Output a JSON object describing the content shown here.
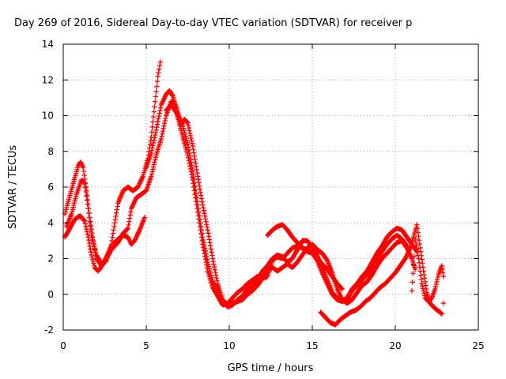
{
  "chart_data": {
    "type": "scatter",
    "title": "Day 269 of 2016, Sidereal Day-to-day VTEC variation (SDTVAR) for receiver p",
    "xlabel": "GPS time / hours",
    "ylabel": "SDTVAR / TECUs",
    "xlim": [
      0,
      25
    ],
    "ylim": [
      -2,
      14
    ],
    "xticks": [
      0,
      5,
      10,
      15,
      20,
      25
    ],
    "yticks": [
      -2,
      0,
      2,
      4,
      6,
      8,
      10,
      12,
      14
    ],
    "grid": true,
    "marker": "plus",
    "color": "#ff0000",
    "series": [
      {
        "points": [
          [
            0.1,
            4.5
          ],
          [
            0.3,
            5.2
          ],
          [
            0.6,
            6.2
          ],
          [
            0.9,
            7.2
          ],
          [
            1.05,
            7.4
          ],
          [
            1.2,
            7.1
          ],
          [
            1.4,
            5.8
          ],
          [
            1.6,
            4.3
          ],
          [
            1.8,
            3.0
          ],
          [
            2.0,
            2.0
          ],
          [
            2.3,
            1.6
          ],
          [
            2.6,
            1.9
          ],
          [
            2.9,
            2.8
          ],
          [
            3.1,
            4.0
          ],
          [
            3.3,
            5.1
          ],
          [
            3.6,
            5.8
          ],
          [
            3.9,
            6.0
          ],
          [
            4.2,
            5.8
          ],
          [
            4.5,
            6.0
          ],
          [
            4.8,
            6.6
          ],
          [
            5.1,
            7.6
          ],
          [
            5.3,
            8.8
          ],
          [
            5.5,
            10.5
          ],
          [
            5.7,
            12.2
          ],
          [
            5.85,
            13.0
          ]
        ]
      },
      {
        "points": [
          [
            0.1,
            3.2
          ],
          [
            0.4,
            3.7
          ],
          [
            0.7,
            4.2
          ],
          [
            1.0,
            4.4
          ],
          [
            1.3,
            4.1
          ],
          [
            1.5,
            3.2
          ],
          [
            1.7,
            2.2
          ],
          [
            1.9,
            1.5
          ],
          [
            2.1,
            1.3
          ],
          [
            2.4,
            1.7
          ],
          [
            2.7,
            2.3
          ],
          [
            3.0,
            2.8
          ],
          [
            3.3,
            3.1
          ],
          [
            3.6,
            3.3
          ],
          [
            3.9,
            3.2
          ],
          [
            4.1,
            2.8
          ],
          [
            4.3,
            3.0
          ],
          [
            4.6,
            3.6
          ],
          [
            4.9,
            4.3
          ]
        ]
      },
      {
        "points": [
          [
            0.2,
            3.8
          ],
          [
            0.5,
            4.5
          ],
          [
            0.8,
            5.6
          ],
          [
            1.1,
            6.4
          ],
          [
            1.3,
            6.2
          ],
          [
            1.5,
            4.8
          ],
          [
            1.7,
            3.3
          ],
          [
            2.0,
            2.2
          ],
          [
            2.3,
            1.7
          ],
          [
            2.6,
            2.0
          ],
          [
            2.9,
            2.5
          ],
          [
            3.3,
            2.9
          ],
          [
            3.6,
            3.4
          ],
          [
            3.9,
            3.7
          ],
          [
            4.1,
            4.8
          ],
          [
            4.4,
            5.4
          ],
          [
            4.7,
            5.6
          ],
          [
            5.0,
            5.8
          ],
          [
            5.3,
            6.6
          ],
          [
            5.6,
            7.8
          ],
          [
            5.9,
            8.7
          ],
          [
            6.2,
            10.0
          ],
          [
            6.5,
            10.8
          ],
          [
            6.7,
            10.7
          ],
          [
            6.9,
            9.9
          ],
          [
            7.2,
            8.8
          ],
          [
            7.5,
            7.8
          ],
          [
            7.8,
            6.4
          ],
          [
            8.1,
            4.6
          ],
          [
            8.4,
            2.8
          ],
          [
            8.7,
            1.3
          ],
          [
            9.0,
            0.4
          ],
          [
            9.3,
            -0.1
          ],
          [
            9.6,
            -0.6
          ],
          [
            9.9,
            -0.5
          ],
          [
            10.2,
            -0.2
          ],
          [
            10.5,
            0.1
          ],
          [
            10.8,
            0.3
          ],
          [
            11.1,
            0.6
          ],
          [
            11.4,
            0.8
          ],
          [
            11.7,
            1.0
          ],
          [
            12.0,
            0.9
          ],
          [
            12.3,
            1.3
          ],
          [
            12.6,
            1.5
          ],
          [
            12.9,
            1.3
          ],
          [
            13.2,
            1.5
          ],
          [
            13.5,
            1.7
          ],
          [
            13.8,
            1.5
          ],
          [
            14.1,
            1.8
          ],
          [
            14.4,
            2.2
          ],
          [
            14.7,
            2.6
          ],
          [
            15.0,
            2.8
          ],
          [
            15.3,
            2.5
          ],
          [
            15.6,
            2.3
          ],
          [
            15.9,
            1.9
          ],
          [
            16.2,
            1.2
          ],
          [
            16.5,
            0.3
          ],
          [
            16.8,
            -0.3
          ],
          [
            17.1,
            -0.5
          ],
          [
            17.4,
            -0.3
          ],
          [
            17.7,
            0.1
          ],
          [
            18.0,
            0.5
          ],
          [
            18.3,
            0.7
          ],
          [
            18.6,
            1.1
          ],
          [
            18.9,
            1.6
          ],
          [
            19.2,
            2.0
          ],
          [
            19.5,
            2.3
          ],
          [
            19.8,
            2.6
          ],
          [
            20.1,
            2.9
          ],
          [
            20.4,
            3.0
          ],
          [
            20.7,
            2.6
          ],
          [
            21.0,
            2.0
          ],
          [
            21.2,
            1.4
          ]
        ]
      },
      {
        "points": [
          [
            5.0,
            7.1
          ],
          [
            5.3,
            7.9
          ],
          [
            5.6,
            9.2
          ],
          [
            5.9,
            10.6
          ],
          [
            6.2,
            11.2
          ],
          [
            6.4,
            11.4
          ],
          [
            6.6,
            11.1
          ],
          [
            6.9,
            10.2
          ],
          [
            7.2,
            9.4
          ],
          [
            7.5,
            8.4
          ],
          [
            7.8,
            6.9
          ],
          [
            8.1,
            5.0
          ],
          [
            8.4,
            3.2
          ],
          [
            8.7,
            1.8
          ],
          [
            9.0,
            0.7
          ],
          [
            9.3,
            0.2
          ],
          [
            9.6,
            -0.4
          ],
          [
            9.9,
            -0.7
          ],
          [
            10.2,
            -0.6
          ],
          [
            10.5,
            -0.3
          ],
          [
            10.8,
            -0.1
          ],
          [
            11.1,
            0.3
          ],
          [
            11.4,
            0.5
          ],
          [
            11.7,
            0.8
          ],
          [
            12.0,
            1.3
          ],
          [
            12.3,
            1.6
          ],
          [
            12.6,
            2.0
          ],
          [
            12.9,
            2.2
          ],
          [
            13.2,
            2.1
          ],
          [
            13.5,
            1.8
          ],
          [
            13.8,
            2.0
          ],
          [
            14.1,
            2.5
          ],
          [
            14.4,
            3.0
          ],
          [
            14.7,
            3.0
          ],
          [
            15.0,
            2.6
          ],
          [
            15.3,
            2.2
          ],
          [
            15.6,
            1.5
          ],
          [
            15.9,
            0.8
          ],
          [
            16.2,
            0.1
          ],
          [
            16.5,
            -0.2
          ],
          [
            16.8,
            -0.4
          ],
          [
            17.1,
            -0.2
          ],
          [
            17.4,
            0.3
          ],
          [
            17.7,
            0.6
          ],
          [
            18.0,
            1.0
          ],
          [
            18.3,
            1.3
          ],
          [
            18.6,
            1.8
          ],
          [
            18.9,
            2.3
          ],
          [
            19.2,
            2.7
          ],
          [
            19.5,
            3.2
          ],
          [
            19.8,
            3.5
          ],
          [
            20.1,
            3.7
          ],
          [
            20.4,
            3.6
          ],
          [
            20.7,
            3.2
          ],
          [
            21.0,
            2.8
          ],
          [
            21.3,
            2.4
          ]
        ]
      },
      {
        "points": [
          [
            6.2,
            10.3
          ],
          [
            6.5,
            10.6
          ],
          [
            6.8,
            10.2
          ],
          [
            7.1,
            9.5
          ],
          [
            7.3,
            9.8
          ],
          [
            7.5,
            9.6
          ],
          [
            7.8,
            8.3
          ],
          [
            8.1,
            6.6
          ],
          [
            8.4,
            5.0
          ],
          [
            8.7,
            3.6
          ],
          [
            9.0,
            2.0
          ],
          [
            9.3,
            0.6
          ],
          [
            9.6,
            -0.3
          ],
          [
            9.9,
            -0.7
          ],
          [
            10.2,
            -0.5
          ],
          [
            10.5,
            -0.4
          ],
          [
            10.8,
            -0.3
          ],
          [
            11.1,
            0.0
          ],
          [
            11.4,
            0.2
          ],
          [
            11.7,
            0.5
          ],
          [
            12.0,
            0.9
          ],
          [
            12.3,
            1.0
          ],
          [
            12.6,
            1.9
          ],
          [
            12.9,
            2.1
          ],
          [
            13.2,
            2.0
          ],
          [
            13.5,
            2.3
          ],
          [
            13.8,
            2.6
          ],
          [
            14.1,
            2.7
          ],
          [
            14.4,
            2.6
          ],
          [
            14.7,
            2.4
          ],
          [
            15.0,
            2.3
          ],
          [
            15.3,
            1.9
          ],
          [
            15.6,
            1.2
          ],
          [
            15.9,
            0.6
          ],
          [
            16.2,
            0.0
          ],
          [
            16.5,
            -0.3
          ],
          [
            16.8,
            -0.4
          ],
          [
            17.1,
            -0.3
          ],
          [
            17.4,
            0.2
          ],
          [
            17.7,
            0.5
          ],
          [
            18.0,
            0.8
          ],
          [
            18.3,
            1.1
          ],
          [
            18.6,
            1.4
          ],
          [
            18.9,
            1.9
          ],
          [
            19.2,
            2.4
          ],
          [
            19.5,
            2.8
          ],
          [
            19.8,
            3.1
          ],
          [
            20.1,
            3.3
          ],
          [
            20.4,
            3.1
          ],
          [
            20.7,
            2.7
          ]
        ]
      },
      {
        "points": [
          [
            12.3,
            3.3
          ],
          [
            12.6,
            3.6
          ],
          [
            12.9,
            3.8
          ],
          [
            13.2,
            3.9
          ],
          [
            13.5,
            3.6
          ],
          [
            13.8,
            3.2
          ],
          [
            14.1,
            2.9
          ],
          [
            14.4,
            2.6
          ],
          [
            14.7,
            2.5
          ],
          [
            15.0,
            2.3
          ],
          [
            15.3,
            2.0
          ],
          [
            15.6,
            1.7
          ],
          [
            15.9,
            1.4
          ],
          [
            16.2,
            1.0
          ],
          [
            16.5,
            0.6
          ],
          [
            16.8,
            0.3
          ]
        ]
      },
      {
        "points": [
          [
            15.5,
            -1.0
          ],
          [
            15.8,
            -1.3
          ],
          [
            16.1,
            -1.6
          ],
          [
            16.4,
            -1.7
          ],
          [
            16.7,
            -1.4
          ],
          [
            17.0,
            -1.2
          ],
          [
            17.3,
            -1.0
          ],
          [
            17.6,
            -0.9
          ],
          [
            17.9,
            -0.7
          ],
          [
            18.2,
            -0.4
          ],
          [
            18.5,
            -0.2
          ],
          [
            18.8,
            0.1
          ],
          [
            19.1,
            0.4
          ],
          [
            19.4,
            0.6
          ],
          [
            19.7,
            0.9
          ],
          [
            20.0,
            1.2
          ],
          [
            20.3,
            1.6
          ],
          [
            20.6,
            2.0
          ],
          [
            20.9,
            2.6
          ],
          [
            21.1,
            3.2
          ],
          [
            21.3,
            3.9
          ],
          [
            21.5,
            2.6
          ],
          [
            21.7,
            1.3
          ],
          [
            21.9,
            0.1
          ],
          [
            22.1,
            -0.5
          ],
          [
            22.4,
            -0.8
          ],
          [
            22.7,
            -1.0
          ],
          [
            22.8,
            -1.1
          ]
        ]
      },
      {
        "points": [
          [
            21.0,
            0.2
          ],
          [
            21.2,
            3.1
          ],
          [
            21.4,
            2.0
          ],
          [
            21.6,
            0.6
          ],
          [
            21.8,
            -0.2
          ],
          [
            22.0,
            -0.4
          ],
          [
            22.2,
            -0.2
          ],
          [
            22.4,
            0.3
          ],
          [
            22.6,
            1.1
          ],
          [
            22.8,
            1.6
          ],
          [
            22.9,
            1.0
          ],
          [
            22.9,
            -0.5
          ]
        ]
      }
    ]
  }
}
